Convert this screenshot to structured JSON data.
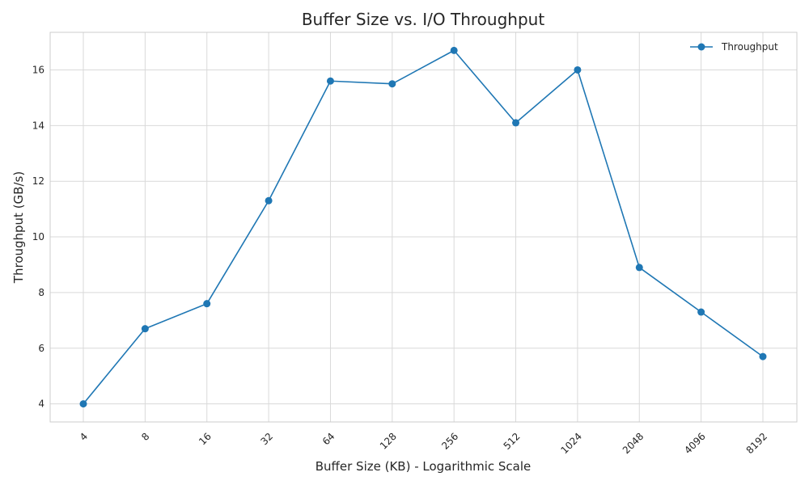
{
  "chart_data": {
    "type": "line",
    "title": "Buffer Size vs. I/O Throughput",
    "xlabel": "Buffer Size (KB) - Logarithmic Scale",
    "ylabel": "Throughput (GB/s)",
    "categories": [
      "4",
      "8",
      "16",
      "32",
      "64",
      "128",
      "256",
      "512",
      "1024",
      "2048",
      "4096",
      "8192"
    ],
    "series": [
      {
        "name": "Throughput",
        "values": [
          4.0,
          6.7,
          7.6,
          11.3,
          15.6,
          15.5,
          16.7,
          14.1,
          16.0,
          8.9,
          7.3,
          5.7
        ],
        "color": "#1f77b4",
        "marker": "circle"
      }
    ],
    "ylim": [
      3.35,
      17.35
    ],
    "yticks": [
      4,
      6,
      8,
      10,
      12,
      14,
      16
    ],
    "grid": true,
    "legend": "top-right",
    "xtick_rotation": 45
  }
}
